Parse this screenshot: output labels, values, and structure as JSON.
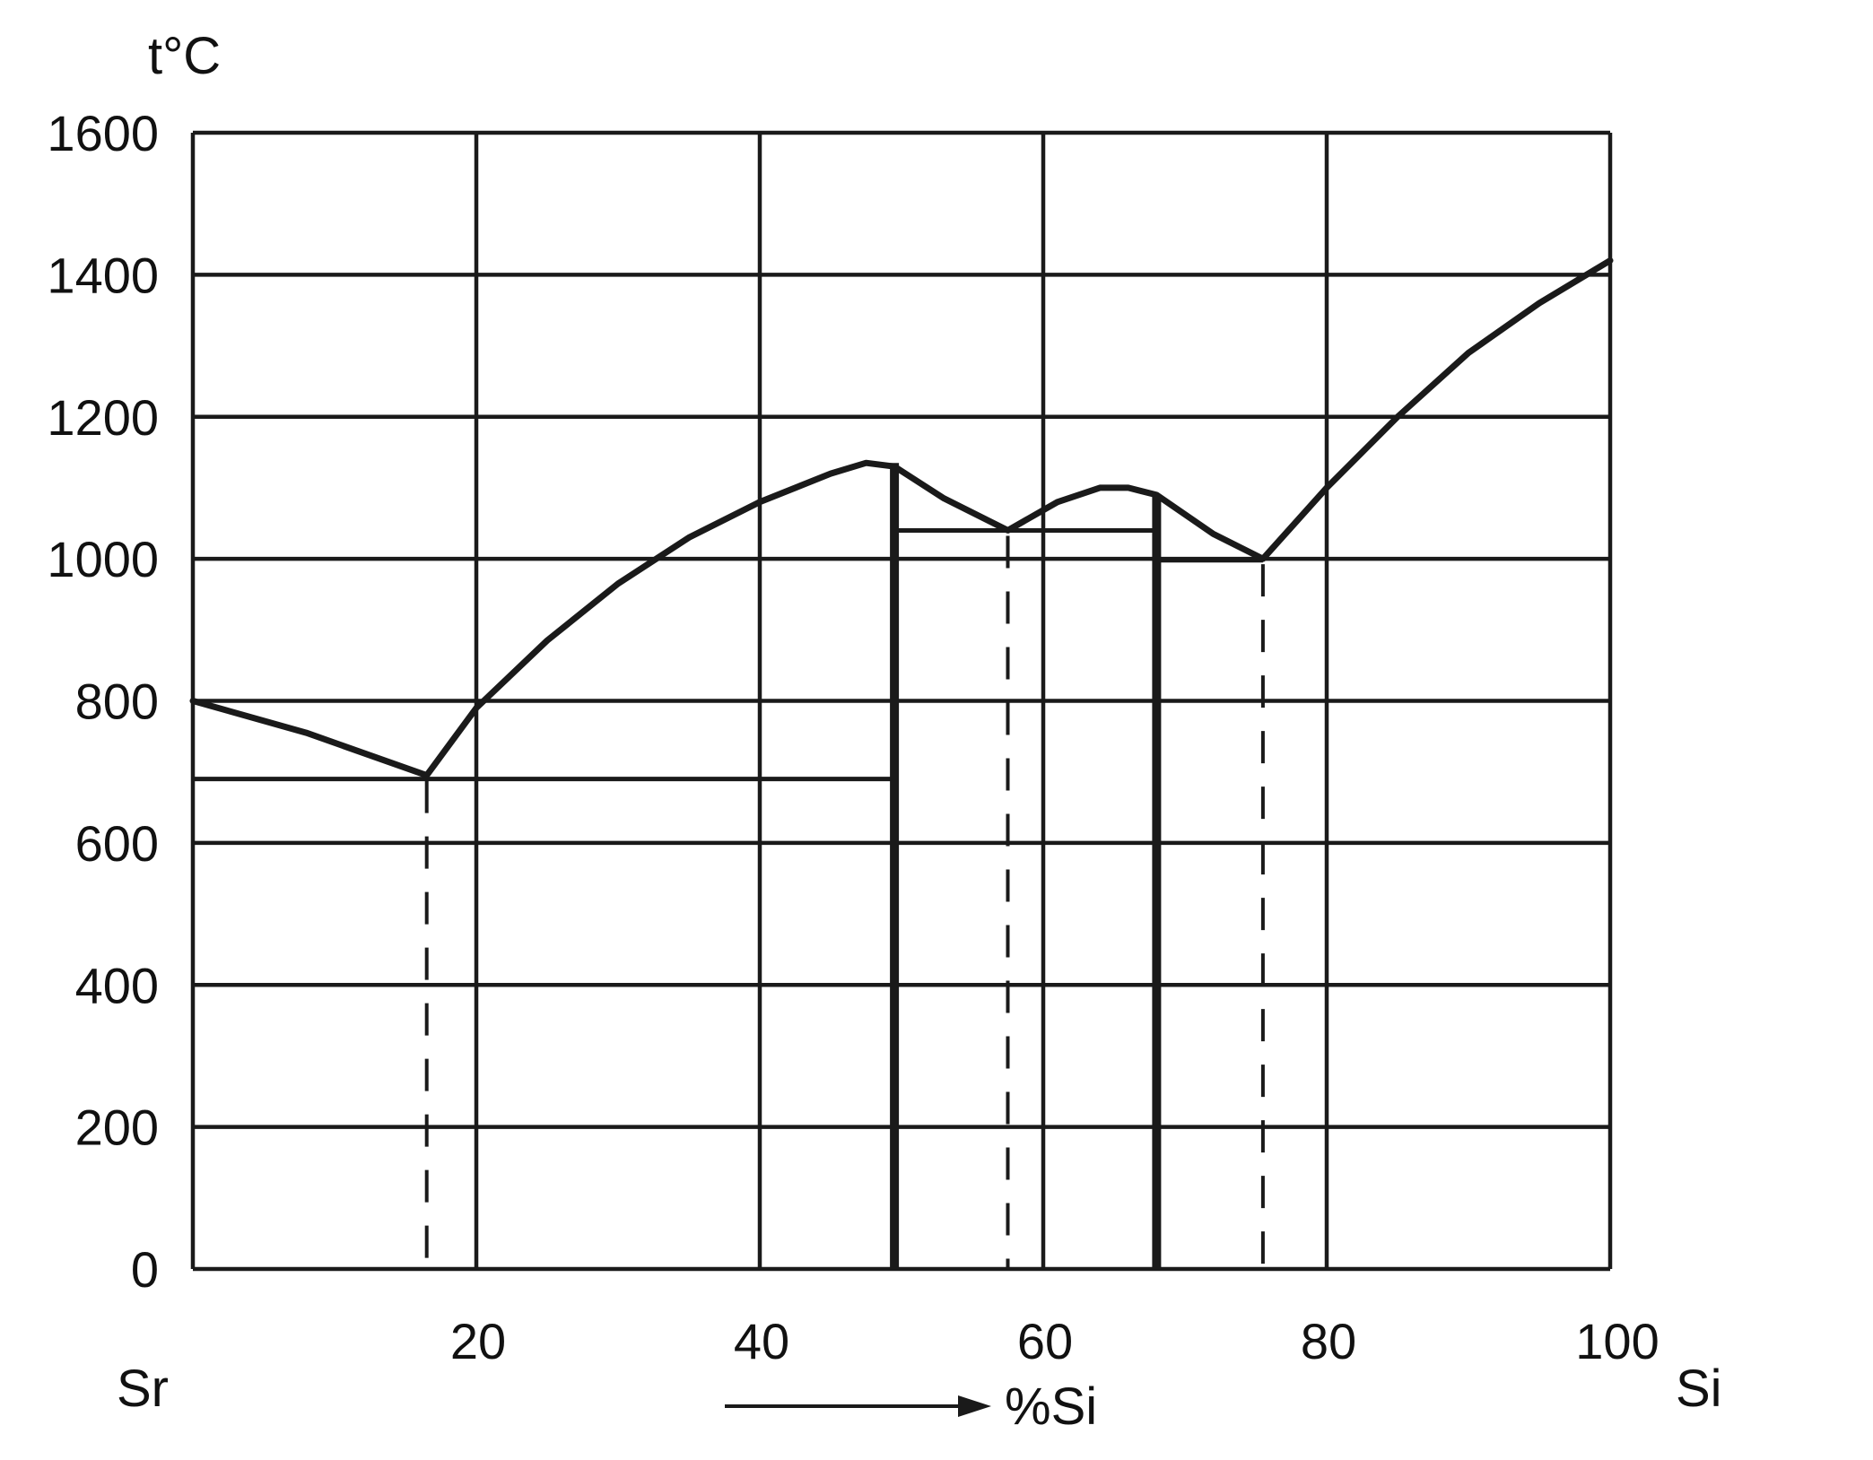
{
  "chart_data": {
    "type": "line",
    "title": "",
    "ylabel": "t°C",
    "xlabel": "%Si",
    "x_left_end_label": "Sr",
    "x_right_end_label": "Si",
    "xlim": [
      0,
      100
    ],
    "ylim": [
      0,
      1600
    ],
    "x_ticks": [
      20,
      40,
      60,
      80,
      100
    ],
    "y_ticks": [
      0,
      200,
      400,
      600,
      800,
      1000,
      1200,
      1400,
      1600
    ],
    "grid": true,
    "liquidus": {
      "x": [
        0,
        8,
        16.5,
        20,
        25,
        30,
        35,
        40,
        45,
        47.5,
        49.5,
        53,
        57.5,
        61,
        64,
        66,
        68,
        72,
        75.5,
        80,
        85,
        90,
        95,
        100
      ],
      "y": [
        800,
        755,
        695,
        790,
        885,
        965,
        1030,
        1080,
        1120,
        1135,
        1130,
        1085,
        1040,
        1080,
        1100,
        1100,
        1090,
        1035,
        1000,
        1100,
        1200,
        1290,
        1360,
        1420
      ]
    },
    "solidus_lines": [
      {
        "x": [
          0,
          49.5
        ],
        "y": 690
      },
      {
        "x": [
          49.5,
          68
        ],
        "y": 1040
      },
      {
        "x": [
          68,
          75.5
        ],
        "y": 998
      }
    ],
    "compounds": [
      {
        "x": 49.5,
        "y_top": 1135
      },
      {
        "x": 68,
        "y_top": 1090
      }
    ],
    "eutectic_drops": [
      {
        "x": 16.5,
        "y_top": 695
      },
      {
        "x": 57.5,
        "y_top": 1040
      },
      {
        "x": 75.5,
        "y_top": 1000
      }
    ]
  }
}
